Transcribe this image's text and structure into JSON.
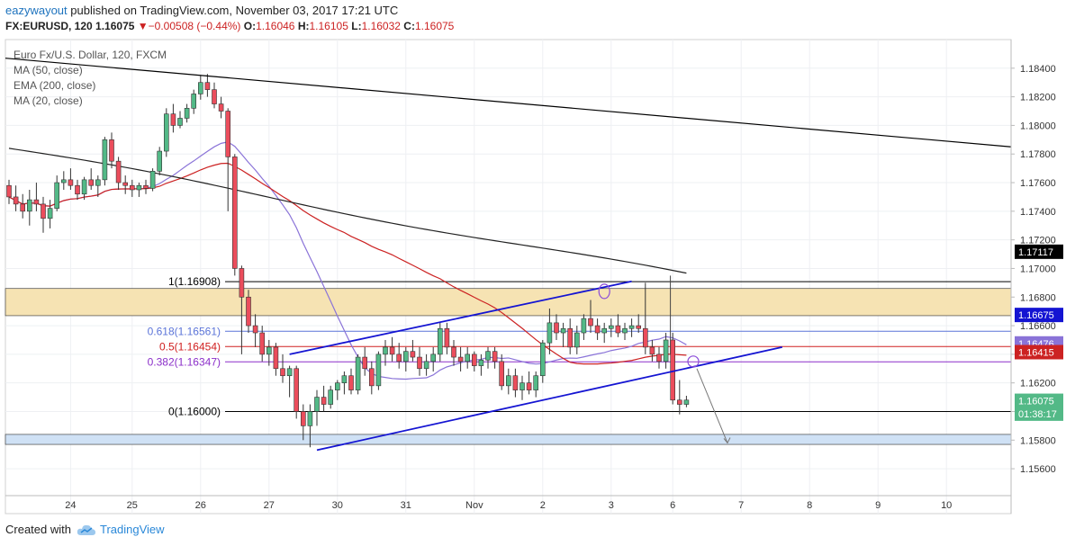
{
  "header": {
    "user": "eazywayout",
    "published": "published on TradingView.com, November 03, 2017 17:21 UTC",
    "symbol": "FX:EURUSD, 120",
    "last": "1.16075",
    "change": "▼−0.00508 (−0.44%)",
    "o_label": "O:",
    "o": "1.16046",
    "h_label": "H:",
    "h": "1.16105",
    "l_label": "L:",
    "l": "1.16032",
    "c_label": "C:",
    "c": "1.16075"
  },
  "legend": {
    "title": "Euro Fx/U.S. Dollar, 120, FXCM",
    "ma50": "MA (50, close)",
    "ema200": "EMA (200, close)",
    "ma20": "MA (20, close)"
  },
  "footer": {
    "created": "Created with",
    "brand": "TradingView"
  },
  "chart_data": {
    "type": "candlestick",
    "ylim": [
      1.155,
      1.186
    ],
    "y_ticks": [
      "1.18400",
      "1.18200",
      "1.18000",
      "1.17800",
      "1.17600",
      "1.17400",
      "1.17200",
      "1.17000",
      "1.16800",
      "1.16600",
      "1.16400",
      "1.16200",
      "1.16000",
      "1.15800",
      "1.15600"
    ],
    "x_ticks": [
      {
        "label": "24",
        "x": 9
      },
      {
        "label": "25",
        "x": 18
      },
      {
        "label": "26",
        "x": 28
      },
      {
        "label": "27",
        "x": 38
      },
      {
        "label": "30",
        "x": 48
      },
      {
        "label": "31",
        "x": 58
      },
      {
        "label": "Nov",
        "x": 68
      },
      {
        "label": "2",
        "x": 78
      },
      {
        "label": "3",
        "x": 88
      },
      {
        "label": "6",
        "x": 97
      },
      {
        "label": "7",
        "x": 107
      },
      {
        "label": "8",
        "x": 117
      },
      {
        "label": "9",
        "x": 127
      },
      {
        "label": "10",
        "x": 137
      }
    ],
    "x_max": 141,
    "candles": [
      [
        1.1758,
        1.1762,
        1.1745,
        1.175
      ],
      [
        1.175,
        1.1758,
        1.174,
        1.1745
      ],
      [
        1.1745,
        1.1752,
        1.1735,
        1.174
      ],
      [
        1.174,
        1.1755,
        1.173,
        1.1748
      ],
      [
        1.1748,
        1.176,
        1.174,
        1.1745
      ],
      [
        1.1745,
        1.175,
        1.1725,
        1.1735
      ],
      [
        1.1735,
        1.1748,
        1.1728,
        1.1742
      ],
      [
        1.1742,
        1.1765,
        1.174,
        1.176
      ],
      [
        1.176,
        1.1768,
        1.1755,
        1.1762
      ],
      [
        1.1762,
        1.177,
        1.1755,
        1.1758
      ],
      [
        1.1758,
        1.1762,
        1.1748,
        1.1752
      ],
      [
        1.1752,
        1.1764,
        1.1748,
        1.1762
      ],
      [
        1.1762,
        1.177,
        1.1755,
        1.1758
      ],
      [
        1.1758,
        1.1765,
        1.175,
        1.1762
      ],
      [
        1.1762,
        1.1792,
        1.1758,
        1.179
      ],
      [
        1.179,
        1.1795,
        1.177,
        1.1775
      ],
      [
        1.1775,
        1.1778,
        1.1755,
        1.176
      ],
      [
        1.176,
        1.1765,
        1.1752,
        1.1758
      ],
      [
        1.1758,
        1.1762,
        1.175,
        1.1755
      ],
      [
        1.1755,
        1.176,
        1.175,
        1.1758
      ],
      [
        1.1758,
        1.1762,
        1.1752,
        1.1756
      ],
      [
        1.1756,
        1.177,
        1.1754,
        1.1768
      ],
      [
        1.1768,
        1.1785,
        1.1765,
        1.1782
      ],
      [
        1.1782,
        1.1812,
        1.1778,
        1.1808
      ],
      [
        1.1808,
        1.1815,
        1.1795,
        1.18
      ],
      [
        1.18,
        1.181,
        1.1798,
        1.1805
      ],
      [
        1.1805,
        1.1815,
        1.1802,
        1.1812
      ],
      [
        1.1812,
        1.1825,
        1.1808,
        1.1822
      ],
      [
        1.1822,
        1.1835,
        1.1818,
        1.183
      ],
      [
        1.183,
        1.1836,
        1.182,
        1.1825
      ],
      [
        1.1825,
        1.183,
        1.1812,
        1.1815
      ],
      [
        1.1815,
        1.182,
        1.1805,
        1.181
      ],
      [
        1.181,
        1.1812,
        1.174,
        1.1778
      ],
      [
        1.1778,
        1.178,
        1.1695,
        1.17
      ],
      [
        1.17,
        1.1702,
        1.164,
        1.168
      ],
      [
        1.168,
        1.1685,
        1.1655,
        1.166
      ],
      [
        1.166,
        1.1668,
        1.1645,
        1.1655
      ],
      [
        1.1655,
        1.166,
        1.1635,
        1.164
      ],
      [
        1.164,
        1.165,
        1.1632,
        1.1645
      ],
      [
        1.1645,
        1.1648,
        1.1625,
        1.163
      ],
      [
        1.163,
        1.164,
        1.162,
        1.1625
      ],
      [
        1.1625,
        1.1632,
        1.161,
        1.163
      ],
      [
        1.163,
        1.1632,
        1.1595,
        1.16
      ],
      [
        1.16,
        1.1605,
        1.158,
        1.159
      ],
      [
        1.159,
        1.1605,
        1.1575,
        1.16
      ],
      [
        1.16,
        1.1615,
        1.159,
        1.161
      ],
      [
        1.161,
        1.1618,
        1.16,
        1.1605
      ],
      [
        1.1605,
        1.1618,
        1.1602,
        1.1615
      ],
      [
        1.1615,
        1.1622,
        1.1608,
        1.162
      ],
      [
        1.162,
        1.1628,
        1.1612,
        1.1625
      ],
      [
        1.1625,
        1.163,
        1.1612,
        1.1615
      ],
      [
        1.1615,
        1.164,
        1.1612,
        1.1638
      ],
      [
        1.1638,
        1.1645,
        1.1625,
        1.163
      ],
      [
        1.163,
        1.1635,
        1.1612,
        1.1618
      ],
      [
        1.1618,
        1.1642,
        1.1615,
        1.164
      ],
      [
        1.164,
        1.165,
        1.1632,
        1.1645
      ],
      [
        1.1645,
        1.1652,
        1.1635,
        1.164
      ],
      [
        1.164,
        1.1648,
        1.163,
        1.1635
      ],
      [
        1.1635,
        1.1645,
        1.1628,
        1.1642
      ],
      [
        1.1642,
        1.165,
        1.1635,
        1.1638
      ],
      [
        1.1638,
        1.1645,
        1.1625,
        1.163
      ],
      [
        1.163,
        1.164,
        1.1625,
        1.1635
      ],
      [
        1.1635,
        1.1645,
        1.1628,
        1.164
      ],
      [
        1.164,
        1.1662,
        1.1635,
        1.1658
      ],
      [
        1.1658,
        1.1662,
        1.164,
        1.1645
      ],
      [
        1.1645,
        1.165,
        1.1632,
        1.1638
      ],
      [
        1.1638,
        1.1645,
        1.1628,
        1.1635
      ],
      [
        1.1635,
        1.1645,
        1.163,
        1.164
      ],
      [
        1.164,
        1.1642,
        1.1628,
        1.1632
      ],
      [
        1.1632,
        1.164,
        1.1625,
        1.1636
      ],
      [
        1.1636,
        1.1645,
        1.163,
        1.1642
      ],
      [
        1.1642,
        1.1645,
        1.163,
        1.1635
      ],
      [
        1.1635,
        1.164,
        1.1615,
        1.1618
      ],
      [
        1.1618,
        1.163,
        1.1612,
        1.1625
      ],
      [
        1.1625,
        1.163,
        1.161,
        1.1615
      ],
      [
        1.1615,
        1.1625,
        1.1608,
        1.162
      ],
      [
        1.162,
        1.1628,
        1.1612,
        1.1615
      ],
      [
        1.1615,
        1.1628,
        1.161,
        1.1625
      ],
      [
        1.1625,
        1.165,
        1.162,
        1.1648
      ],
      [
        1.1648,
        1.1672,
        1.164,
        1.1662
      ],
      [
        1.1662,
        1.1668,
        1.165,
        1.1655
      ],
      [
        1.1655,
        1.1662,
        1.1645,
        1.1658
      ],
      [
        1.1658,
        1.1665,
        1.164,
        1.1645
      ],
      [
        1.1645,
        1.166,
        1.164,
        1.1655
      ],
      [
        1.1655,
        1.1668,
        1.165,
        1.1665
      ],
      [
        1.1665,
        1.1678,
        1.1655,
        1.166
      ],
      [
        1.166,
        1.1665,
        1.165,
        1.1655
      ],
      [
        1.1655,
        1.1662,
        1.1648,
        1.1658
      ],
      [
        1.1658,
        1.1665,
        1.1652,
        1.166
      ],
      [
        1.166,
        1.1668,
        1.1652,
        1.1655
      ],
      [
        1.1655,
        1.1662,
        1.165,
        1.1658
      ],
      [
        1.1658,
        1.1665,
        1.1652,
        1.166
      ],
      [
        1.166,
        1.1668,
        1.1655,
        1.1658
      ],
      [
        1.1658,
        1.169,
        1.164,
        1.1645
      ],
      [
        1.1645,
        1.165,
        1.1635,
        1.164
      ],
      [
        1.164,
        1.1645,
        1.163,
        1.1635
      ],
      [
        1.1635,
        1.1655,
        1.163,
        1.165
      ],
      [
        1.165,
        1.1655,
        1.1605,
        1.1608
      ],
      [
        1.1608,
        1.1622,
        1.1598,
        1.1605
      ],
      [
        1.1605,
        1.1611,
        1.1603,
        1.1608
      ]
    ],
    "overlays": {
      "ma20_color": "#8a73d8",
      "ma50_color": "#cc2222",
      "ema200_color": "#222222",
      "trendline_color": "#000000",
      "channel_color": "#1414d2"
    },
    "fib_levels": [
      {
        "label": "1(1.16908)",
        "value": 1.16908,
        "color": "#000000"
      },
      {
        "label": "0.618(1.16561)",
        "value": 1.16561,
        "color": "#5b74d8"
      },
      {
        "label": "0.5(1.16454)",
        "value": 1.16454,
        "color": "#d02020"
      },
      {
        "label": "0.382(1.16347)",
        "value": 1.16347,
        "color": "#8b2fc9"
      },
      {
        "label": "0(1.16000)",
        "value": 1.16,
        "color": "#000000"
      }
    ],
    "zones": [
      {
        "from": 1.1667,
        "to": 1.1686,
        "color": "#f6e3b3"
      },
      {
        "from": 1.1577,
        "to": 1.1584,
        "color": "#cfe1f5"
      }
    ],
    "price_tags": [
      {
        "label": "1.17117",
        "value": 1.17117,
        "color": "#000000"
      },
      {
        "label": "1.16675",
        "value": 1.16675,
        "color": "#1414d2"
      },
      {
        "label": "1.16476",
        "value": 1.16476,
        "color": "#8a73d8"
      },
      {
        "label": "1.16415",
        "value": 1.16415,
        "color": "#cc2222"
      },
      {
        "label": "1.16075",
        "value": 1.16075,
        "color": "#53b987"
      },
      {
        "label": "01:38:17",
        "value": 1.15985,
        "color": "#53b987"
      }
    ]
  }
}
